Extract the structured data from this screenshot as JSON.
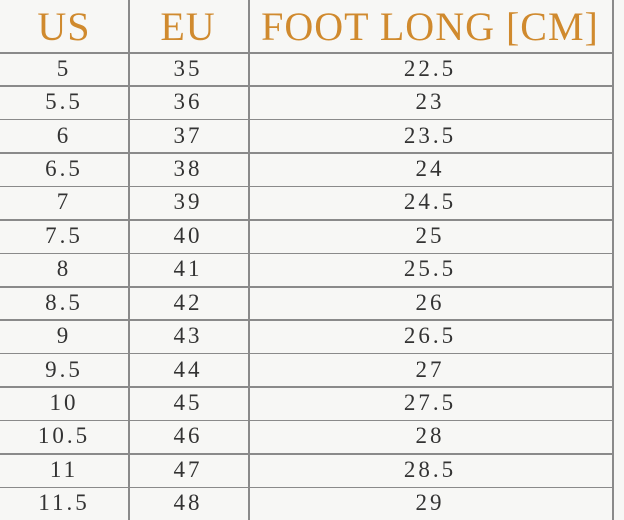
{
  "table": {
    "header": [
      "US",
      "EU",
      "FOOT LONG [CM]"
    ],
    "rows": [
      [
        "5",
        "35",
        "22.5"
      ],
      [
        "5.5",
        "36",
        "23"
      ],
      [
        "6",
        "37",
        "23.5"
      ],
      [
        "6.5",
        "38",
        "24"
      ],
      [
        "7",
        "39",
        "24.5"
      ],
      [
        "7.5",
        "40",
        "25"
      ],
      [
        "8",
        "41",
        "25.5"
      ],
      [
        "8.5",
        "42",
        "26"
      ],
      [
        "9",
        "43",
        "26.5"
      ],
      [
        "9.5",
        "44",
        "27"
      ],
      [
        "10",
        "45",
        "27.5"
      ],
      [
        "10.5",
        "46",
        "28"
      ],
      [
        "11",
        "47",
        "28.5"
      ],
      [
        "11.5",
        "48",
        "29"
      ]
    ]
  }
}
